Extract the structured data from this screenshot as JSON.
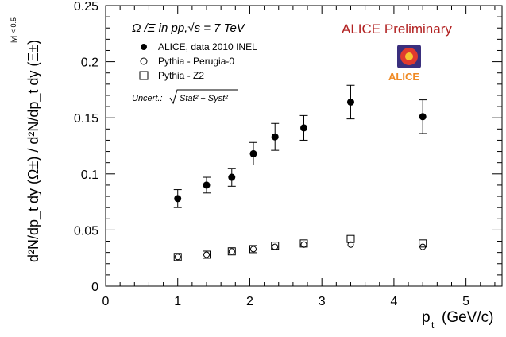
{
  "chart_data": {
    "type": "scatter",
    "title": "ALICE Preliminary",
    "title_color": "#b22222",
    "annotation": "Ω /Ξ in pp,√s = 7 TeV",
    "uncert_prefix": "Uncert.:",
    "uncert_formula": "Stat² + Syst²",
    "logo_text": "ALICE",
    "xlabel": "p",
    "xlabel_sub": "t",
    "xlabel_unit": "(GeV/c)",
    "ylabel_main": "d²N/dp_t dy (Ω±) / d²N/dp_t dy (Ξ±)",
    "ylabel_condition": "|y| < 0.5",
    "xlim": [
      0,
      5.5
    ],
    "ylim": [
      0,
      0.25
    ],
    "xticks": [
      "0",
      "1",
      "2",
      "3",
      "4",
      "5"
    ],
    "yticks": [
      "0",
      "0.05",
      "0.1",
      "0.15",
      "0.2",
      "0.25"
    ],
    "legend_position": "top-left",
    "series": [
      {
        "name": "ALICE, data 2010 INEL",
        "marker": "filled-circle",
        "x": [
          1.0,
          1.4,
          1.75,
          2.05,
          2.35,
          2.75,
          3.4,
          4.4
        ],
        "y": [
          0.078,
          0.09,
          0.097,
          0.118,
          0.133,
          0.141,
          0.164,
          0.151
        ],
        "err": [
          0.008,
          0.007,
          0.008,
          0.01,
          0.012,
          0.011,
          0.015,
          0.015
        ]
      },
      {
        "name": "Pythia - Perugia-0",
        "marker": "open-circle",
        "x": [
          1.0,
          1.4,
          1.75,
          2.05,
          2.35,
          2.75,
          3.4,
          4.4
        ],
        "y": [
          0.026,
          0.028,
          0.031,
          0.033,
          0.035,
          0.037,
          0.037,
          0.035
        ]
      },
      {
        "name": "Pythia - Z2",
        "marker": "open-square",
        "x": [
          1.0,
          1.4,
          1.75,
          2.05,
          2.35,
          2.75,
          3.4,
          4.4
        ],
        "y": [
          0.026,
          0.028,
          0.031,
          0.033,
          0.036,
          0.038,
          0.042,
          0.038
        ]
      }
    ]
  }
}
